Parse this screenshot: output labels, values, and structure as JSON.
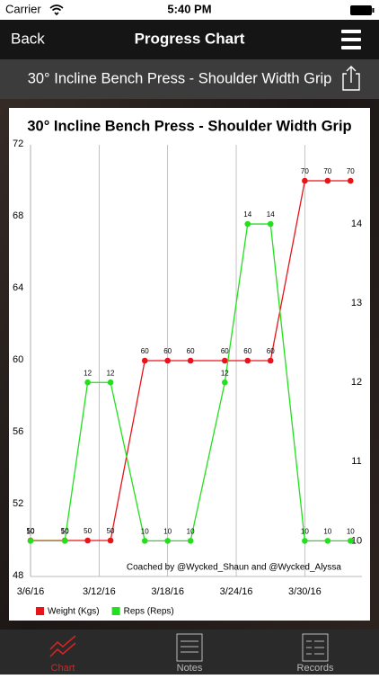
{
  "status_bar": {
    "carrier": "Carrier",
    "time": "5:40 PM"
  },
  "nav": {
    "back": "Back",
    "title": "Progress Chart"
  },
  "exercise": "30° Incline Bench Press - Shoulder Width Grip",
  "tabs": [
    "Chart",
    "Notes",
    "Records"
  ],
  "chart_data": {
    "type": "line",
    "title": "30° Incline Bench Press - Shoulder Width Grip",
    "annotation": "Coached by @Wycked_Shaun and @Wycked_Alyssa",
    "x": [
      "2016-03-06",
      "2016-03-09",
      "2016-03-11",
      "2016-03-13",
      "2016-03-16",
      "2016-03-18",
      "2016-03-20",
      "2016-03-23",
      "2016-03-25",
      "2016-03-27",
      "2016-03-30",
      "2016-04-01",
      "2016-04-03"
    ],
    "xlim": [
      "2016-03-06",
      "2016-04-04"
    ],
    "xticks": [
      {
        "value": "2016-03-06",
        "label": "3/6/16"
      },
      {
        "value": "2016-03-12",
        "label": "3/12/16"
      },
      {
        "value": "2016-03-18",
        "label": "3/18/16"
      },
      {
        "value": "2016-03-24",
        "label": "3/24/16"
      },
      {
        "value": "2016-03-30",
        "label": "3/30/16"
      }
    ],
    "ylim": [
      48,
      72
    ],
    "yticks": [
      48,
      52,
      56,
      60,
      64,
      68,
      72
    ],
    "y2lim": [
      9.55,
      15
    ],
    "y2ticks": [
      10,
      11,
      12,
      13,
      14
    ],
    "grid": true,
    "legend": "bottom",
    "series": [
      {
        "name": "Weight (Kgs)",
        "color": "#e8141a",
        "values": [
          50,
          50,
          50,
          50,
          60,
          60,
          60,
          60,
          60,
          60,
          70,
          70,
          70
        ]
      },
      {
        "name": "Reps (Reps)",
        "color": "#22e01c",
        "axis": "y2",
        "values": [
          10,
          10,
          12,
          12,
          10,
          10,
          10,
          12,
          14,
          14,
          10,
          10,
          10
        ]
      }
    ]
  }
}
